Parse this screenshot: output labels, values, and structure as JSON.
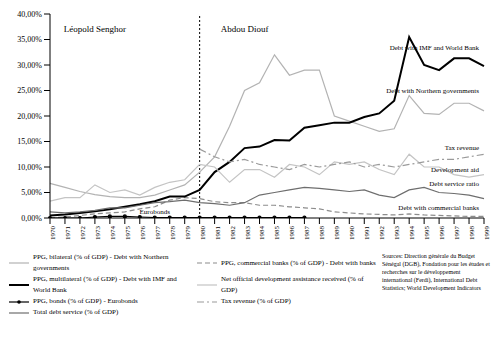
{
  "chart_data": {
    "type": "line",
    "categories": [
      "1970",
      "1971",
      "1972",
      "1973",
      "1974",
      "1975",
      "1976",
      "1977",
      "1978",
      "1979",
      "1980",
      "1981",
      "1982",
      "1983",
      "1984",
      "1985",
      "1986",
      "1987",
      "1988",
      "1989",
      "1990",
      "1991",
      "1992",
      "1993",
      "1994",
      "1995",
      "1996",
      "1997",
      "1998",
      "1999"
    ],
    "ylim": [
      0,
      40
    ],
    "yticks": [
      {
        "value": 0,
        "label": "0,00%"
      },
      {
        "value": 5,
        "label": "5,00%"
      },
      {
        "value": 10,
        "label": "10,00%"
      },
      {
        "value": 15,
        "label": "15,00%"
      },
      {
        "value": 20,
        "label": "20,00%"
      },
      {
        "value": 25,
        "label": "25,00%"
      },
      {
        "value": 30,
        "label": "30,00%"
      },
      {
        "value": 35,
        "label": "35,00%"
      },
      {
        "value": 40,
        "label": "40,00%"
      }
    ],
    "grid": false,
    "series": [
      {
        "name": "PPG, bilateral (% of GDP) - Debt with Northern governments",
        "color": "#b3b3b3",
        "line_style": "solid",
        "values": [
          6.8,
          6.0,
          5.2,
          4.6,
          4.2,
          4.0,
          4.0,
          4.5,
          5.5,
          6.5,
          9.0,
          12.0,
          18.0,
          25.0,
          26.5,
          32.0,
          28.0,
          29.0,
          29.0,
          20.0,
          19.0,
          18.0,
          17.0,
          17.5,
          24.0,
          20.5,
          20.3,
          22.5,
          22.5,
          21.0
        ]
      },
      {
        "name": "PPG, commercial banks (% of GDP) - Debt with banks",
        "color": "#8c8c8c",
        "line_style": "dashed",
        "values": [
          0.0,
          0.2,
          0.5,
          0.8,
          1.0,
          1.2,
          1.8,
          2.2,
          3.5,
          4.0,
          3.8,
          3.2,
          3.0,
          3.0,
          2.5,
          2.5,
          2.2,
          2.0,
          1.8,
          1.2,
          1.0,
          0.8,
          0.7,
          0.6,
          0.8,
          0.6,
          0.5,
          0.4,
          0.3,
          0.3
        ]
      },
      {
        "name": "PPG, multilateral (% of GDP) - Debt with IMF and World Bank",
        "color": "#000000",
        "line_style": "solid",
        "values": [
          0.5,
          0.7,
          1.0,
          1.3,
          1.7,
          2.2,
          2.7,
          3.3,
          4.2,
          4.2,
          5.5,
          9.0,
          11.0,
          13.7,
          14.0,
          15.3,
          15.2,
          17.7,
          18.2,
          18.7,
          18.7,
          19.8,
          20.5,
          23.0,
          35.5,
          30.0,
          29.0,
          31.3,
          31.3,
          29.8
        ]
      },
      {
        "name": "Net official development assistance received (% of GDP)",
        "color": "#c4c4c4",
        "line_style": "solid",
        "values": [
          3.3,
          4.0,
          4.0,
          6.5,
          5.0,
          5.5,
          4.5,
          6.0,
          7.0,
          7.5,
          10.5,
          10.0,
          7.0,
          9.5,
          9.5,
          8.0,
          10.5,
          10.0,
          8.5,
          11.0,
          10.5,
          11.0,
          9.5,
          8.5,
          12.5,
          10.0,
          10.0,
          8.5,
          8.0,
          8.5
        ]
      },
      {
        "name": "PPG, bonds (% of GDP) - Eurobonds",
        "color": "#000000",
        "line_style": "solid",
        "marker": "circle",
        "values": [
          0.0,
          0.0,
          0.0,
          0.2,
          0.3,
          0.3,
          0.2,
          0.1,
          0.1,
          0.1,
          0.1,
          0.1,
          0.1,
          0.1,
          0.1,
          0.1,
          0.1,
          0.1,
          null,
          null,
          null,
          null,
          null,
          null,
          null,
          null,
          null,
          null,
          null,
          null
        ]
      },
      {
        "name": "Tax revenue (% of GDP)",
        "color": "#9a9a9a",
        "line_style": "dashdot",
        "values": [
          null,
          null,
          null,
          null,
          null,
          null,
          null,
          null,
          null,
          null,
          13.5,
          12.0,
          11.0,
          11.5,
          10.5,
          10.0,
          9.5,
          10.5,
          10.0,
          10.5,
          11.0,
          10.0,
          10.5,
          10.0,
          10.5,
          11.0,
          11.5,
          11.5,
          12.0,
          12.5
        ]
      },
      {
        "name": "Total debt service (% of GDP)",
        "color": "#6e6e6e",
        "line_style": "solid",
        "values": [
          1.2,
          1.0,
          1.2,
          1.5,
          2.0,
          2.0,
          2.5,
          3.0,
          3.2,
          3.5,
          3.0,
          2.8,
          2.5,
          3.0,
          4.5,
          5.0,
          5.5,
          6.0,
          5.8,
          5.5,
          5.2,
          5.5,
          4.5,
          4.0,
          5.5,
          6.0,
          5.0,
          4.8,
          4.5,
          3.8
        ]
      }
    ],
    "reference_line": {
      "x": "1980"
    },
    "annotations": [
      {
        "text": "Léopold  Senghor",
        "x": "1973",
        "y": 37
      },
      {
        "text": "Abdou  Diouf",
        "x": "1983",
        "y": 37
      },
      {
        "text": "Debt with IMF and World Bank",
        "x": "1999",
        "y": 33.5
      },
      {
        "text": "Debt with Northern governments",
        "x": "1999",
        "y": 25
      },
      {
        "text": "Tax revenue",
        "x": "1999",
        "y": 13.8
      },
      {
        "text": "Development aid",
        "x": "1999",
        "y": 9.6
      },
      {
        "text": "Debt service ratio",
        "x": "1999",
        "y": 6.8
      },
      {
        "text": "Debt with commercial banks",
        "x": "1999",
        "y": 2.0
      },
      {
        "text": "Eurobonds",
        "x": "1977",
        "y": 1.3
      }
    ],
    "source": "Sources: Direction générale du Budget Sénégal (DGB), Fondation pour les études et recherches sur le développement international (Ferdi), International Debt Statistics; World Development Indicators"
  }
}
